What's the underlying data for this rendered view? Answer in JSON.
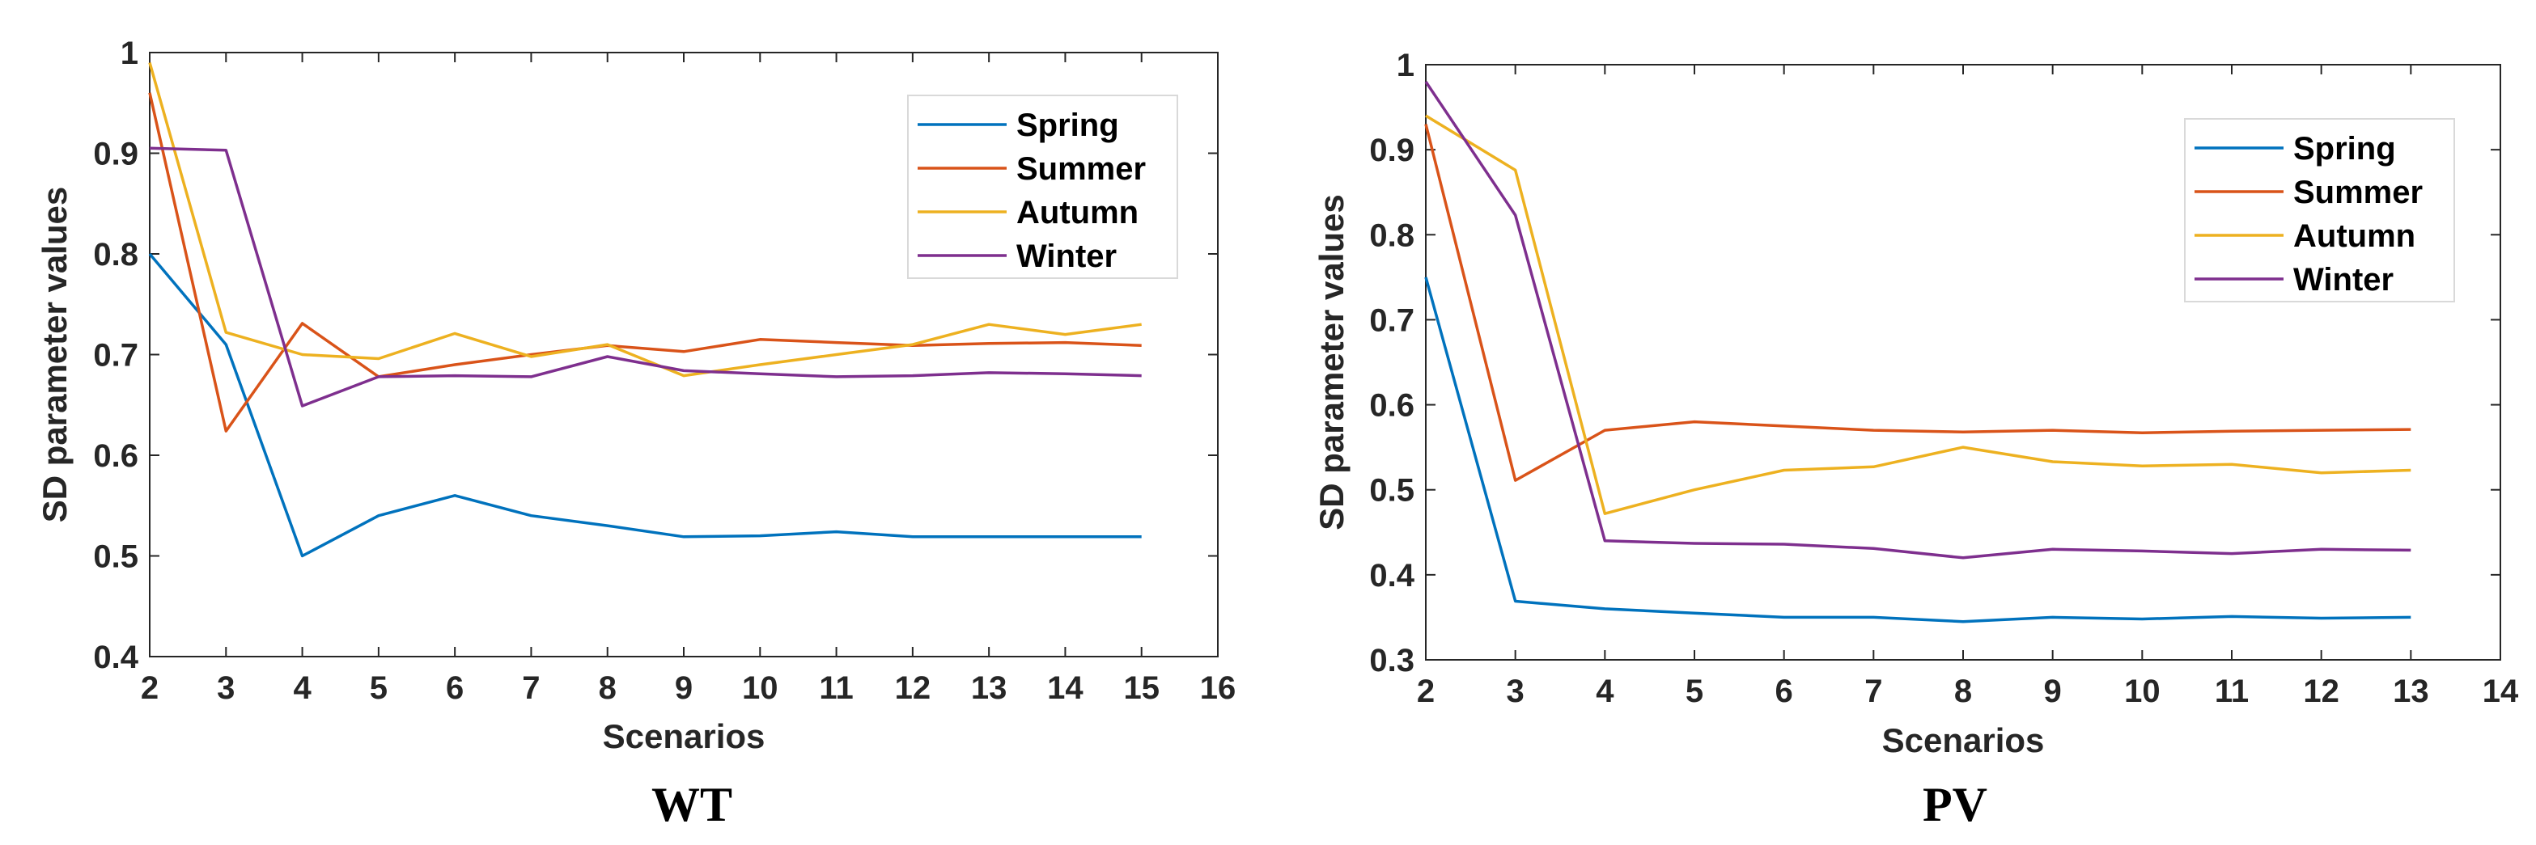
{
  "chart_data": [
    {
      "type": "line",
      "title": "",
      "caption": "WT",
      "xlabel": "Scenarios",
      "ylabel": "SD parameter values",
      "xlim": [
        2,
        16
      ],
      "ylim": [
        0.4,
        1
      ],
      "xticks": [
        "2",
        "3",
        "4",
        "5",
        "6",
        "7",
        "8",
        "9",
        "10",
        "11",
        "12",
        "13",
        "14",
        "15",
        "16"
      ],
      "yticks": [
        "0.4",
        "0.5",
        "0.6",
        "0.7",
        "0.8",
        "0.9",
        "1"
      ],
      "x": [
        2,
        3,
        4,
        5,
        6,
        7,
        8,
        9,
        10,
        11,
        12,
        13,
        14,
        15
      ],
      "series": [
        {
          "name": "Spring",
          "color": "#0072BD",
          "values": [
            0.8,
            0.71,
            0.5,
            0.54,
            0.56,
            0.54,
            0.53,
            0.519,
            0.52,
            0.524,
            0.519,
            0.519,
            0.519,
            0.519
          ]
        },
        {
          "name": "Summer",
          "color": "#D95319",
          "values": [
            0.96,
            0.624,
            0.731,
            0.678,
            0.69,
            0.7,
            0.709,
            0.703,
            0.715,
            0.712,
            0.709,
            0.711,
            0.712,
            0.709
          ]
        },
        {
          "name": "Autumn",
          "color": "#EDB120",
          "values": [
            0.99,
            0.722,
            0.7,
            0.696,
            0.721,
            0.698,
            0.71,
            0.679,
            0.69,
            0.7,
            0.71,
            0.73,
            0.72,
            0.73
          ]
        },
        {
          "name": "Winter",
          "color": "#7E2F8E",
          "values": [
            0.905,
            0.903,
            0.649,
            0.678,
            0.679,
            0.678,
            0.698,
            0.684,
            0.681,
            0.678,
            0.679,
            0.682,
            0.681,
            0.679
          ]
        }
      ],
      "legend": "top-right"
    },
    {
      "type": "line",
      "title": "",
      "caption": "PV",
      "xlabel": "Scenarios",
      "ylabel": "SD parameter values",
      "xlim": [
        2,
        14
      ],
      "ylim": [
        0.3,
        1
      ],
      "xticks": [
        "2",
        "3",
        "4",
        "5",
        "6",
        "7",
        "8",
        "9",
        "10",
        "11",
        "12",
        "13",
        "14"
      ],
      "yticks": [
        "0.3",
        "0.4",
        "0.5",
        "0.6",
        "0.7",
        "0.8",
        "0.9",
        "1"
      ],
      "x": [
        2,
        3,
        4,
        5,
        6,
        7,
        8,
        9,
        10,
        11,
        12,
        13
      ],
      "series": [
        {
          "name": "Spring",
          "color": "#0072BD",
          "values": [
            0.75,
            0.369,
            0.36,
            0.355,
            0.35,
            0.35,
            0.345,
            0.35,
            0.348,
            0.351,
            0.349,
            0.35
          ]
        },
        {
          "name": "Summer",
          "color": "#D95319",
          "values": [
            0.93,
            0.511,
            0.57,
            0.58,
            0.575,
            0.57,
            0.568,
            0.57,
            0.567,
            0.569,
            0.57,
            0.571
          ]
        },
        {
          "name": "Autumn",
          "color": "#EDB120",
          "values": [
            0.94,
            0.876,
            0.472,
            0.5,
            0.523,
            0.527,
            0.55,
            0.533,
            0.528,
            0.53,
            0.52,
            0.523
          ]
        },
        {
          "name": "Winter",
          "color": "#7E2F8E",
          "values": [
            0.98,
            0.823,
            0.44,
            0.437,
            0.436,
            0.431,
            0.42,
            0.43,
            0.428,
            0.425,
            0.43,
            0.429
          ]
        }
      ],
      "legend": "top-right"
    }
  ]
}
